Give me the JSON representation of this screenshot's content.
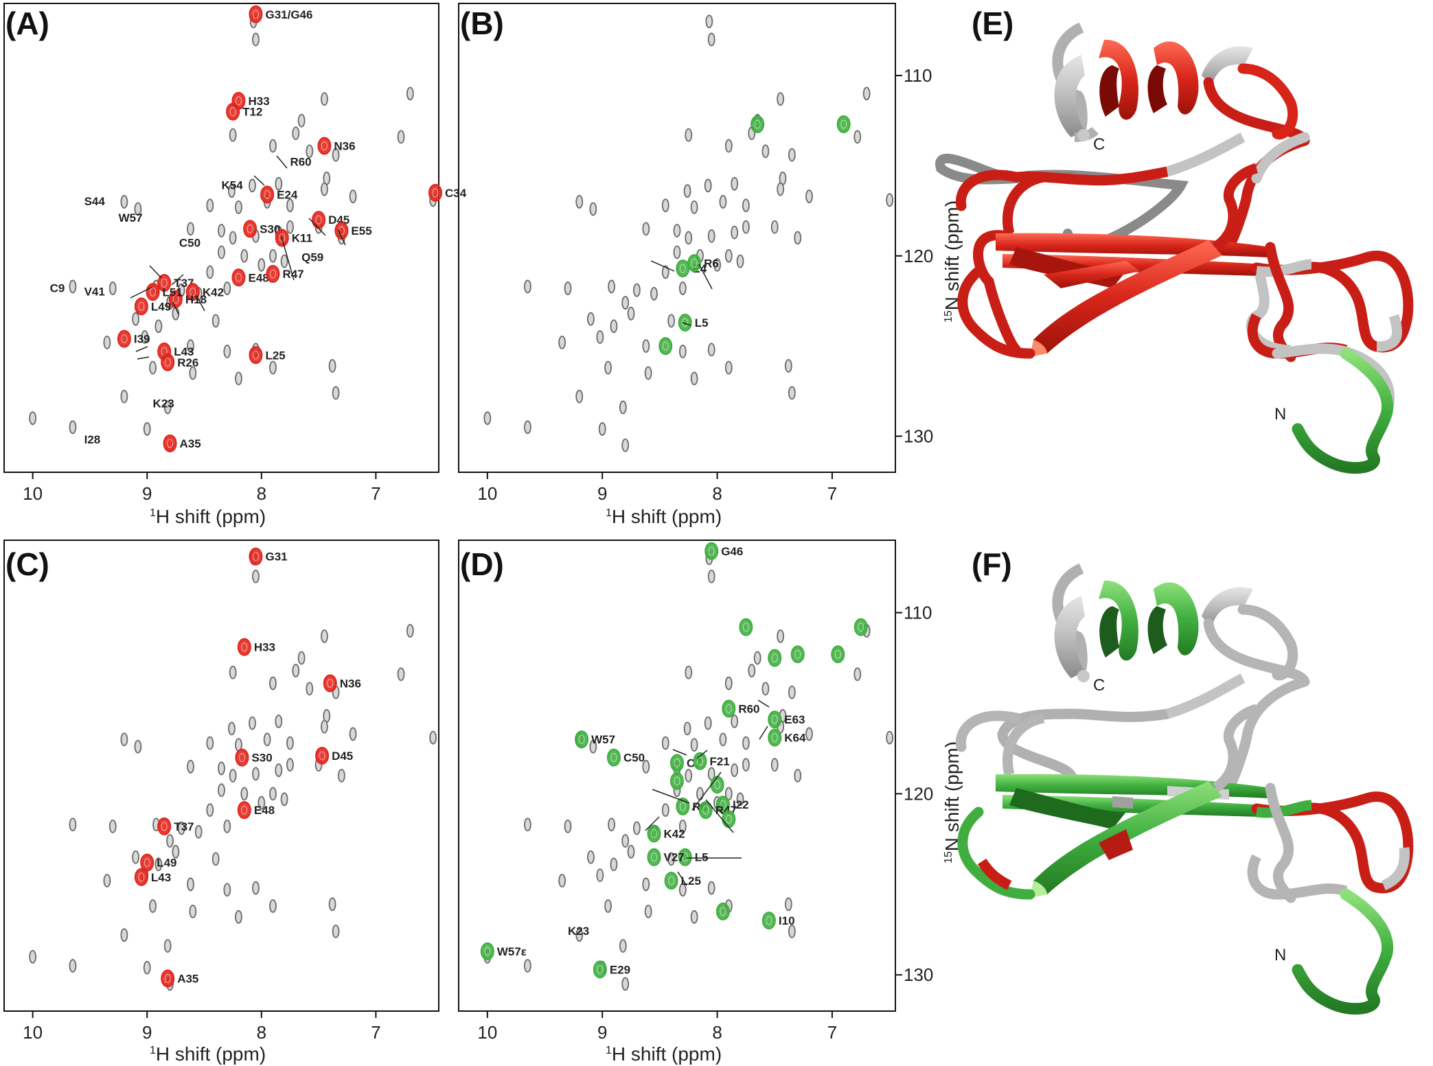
{
  "colors": {
    "red": "#e2231a",
    "green": "#3fae3f",
    "grey": "#6b6b6b",
    "ribbon_grey": "#bdbdbd"
  },
  "panel_labels": {
    "A": "(A)",
    "B": "(B)",
    "C": "(C)",
    "D": "(D)",
    "E": "(E)",
    "F": "(F)"
  },
  "axes": {
    "xlabel_sup": "1",
    "xlabel_rest": "H shift (ppm)",
    "ylabel_sup": "15",
    "ylabel_rest": "N shift (ppm)",
    "x_ticks": [
      "10",
      "9",
      "8",
      "7"
    ],
    "y_ticks": [
      "110",
      "120",
      "130"
    ]
  },
  "structure": {
    "n_term": "N",
    "c_term": "C"
  },
  "chart_data": [
    {
      "panel": "A",
      "type": "scatter",
      "x_axis": "1H shift (ppm)",
      "xlim": [
        10.25,
        6.45
      ],
      "ylim": [
        106,
        132
      ],
      "series": [
        {
          "color": "red",
          "points": [
            {
              "x": 8.05,
              "y": 106.6,
              "label": "G31/G46"
            },
            {
              "x": 8.2,
              "y": 111.4,
              "label": "H33"
            },
            {
              "x": 8.25,
              "y": 112.0,
              "label": "T12"
            },
            {
              "x": 7.45,
              "y": 113.9,
              "label": "N36"
            },
            {
              "x": 7.95,
              "y": 116.6,
              "label": "E24"
            },
            {
              "x": 7.5,
              "y": 118.0,
              "label": "D45"
            },
            {
              "x": 7.3,
              "y": 118.6,
              "label": "E55"
            },
            {
              "x": 6.48,
              "y": 116.5,
              "label": "C34"
            },
            {
              "x": 8.1,
              "y": 118.5,
              "label": "S30"
            },
            {
              "x": 7.82,
              "y": 119.0,
              "label": "K11"
            },
            {
              "x": 8.2,
              "y": 121.2,
              "label": "E48"
            },
            {
              "x": 7.9,
              "y": 121.0,
              "label": "R47"
            },
            {
              "x": 8.85,
              "y": 121.5,
              "label": "T37"
            },
            {
              "x": 8.6,
              "y": 122.0,
              "label": "K42"
            },
            {
              "x": 9.05,
              "y": 122.8,
              "label": "L49"
            },
            {
              "x": 8.75,
              "y": 122.4,
              "label": "H18"
            },
            {
              "x": 8.95,
              "y": 122.0,
              "label": "L51"
            },
            {
              "x": 9.2,
              "y": 124.6,
              "label": "I39"
            },
            {
              "x": 8.85,
              "y": 125.3,
              "label": "L43"
            },
            {
              "x": 8.82,
              "y": 125.9,
              "label": "R26"
            },
            {
              "x": 8.05,
              "y": 125.5,
              "label": "L25"
            },
            {
              "x": 8.8,
              "y": 130.4,
              "label": "A35"
            }
          ]
        }
      ],
      "labels_no_peak": [
        "R60",
        "K54",
        "S44",
        "W57",
        "C50",
        "Q59",
        "C9",
        "V41",
        "K23",
        "I28"
      ]
    },
    {
      "panel": "B",
      "type": "scatter",
      "x_axis": "1H shift (ppm)",
      "y_axis": "15N shift (ppm)",
      "xlim": [
        10.25,
        6.45
      ],
      "ylim": [
        106,
        132
      ],
      "series": [
        {
          "color": "green",
          "points": [
            {
              "x": 8.3,
              "y": 120.7,
              "label": "E4"
            },
            {
              "x": 8.2,
              "y": 120.4,
              "label": "R6"
            },
            {
              "x": 8.28,
              "y": 123.7,
              "label": "L5"
            },
            {
              "x": 7.65,
              "y": 112.7
            },
            {
              "x": 6.9,
              "y": 112.7
            },
            {
              "x": 8.45,
              "y": 125.0
            }
          ]
        }
      ]
    },
    {
      "panel": "C",
      "type": "scatter",
      "x_axis": "1H shift (ppm)",
      "xlim": [
        10.25,
        6.45
      ],
      "ylim": [
        106,
        132
      ],
      "series": [
        {
          "color": "red",
          "points": [
            {
              "x": 8.05,
              "y": 106.9,
              "label": "G31"
            },
            {
              "x": 8.15,
              "y": 111.9,
              "label": "H33"
            },
            {
              "x": 7.4,
              "y": 113.9,
              "label": "N36"
            },
            {
              "x": 7.47,
              "y": 117.9,
              "label": "D45"
            },
            {
              "x": 8.17,
              "y": 118.0,
              "label": "S30"
            },
            {
              "x": 8.85,
              "y": 121.8,
              "label": "T37"
            },
            {
              "x": 8.15,
              "y": 120.9,
              "label": "E48"
            },
            {
              "x": 9.0,
              "y": 123.8,
              "label": "L49"
            },
            {
              "x": 9.05,
              "y": 124.6,
              "label": "L43"
            },
            {
              "x": 8.82,
              "y": 130.2,
              "label": "A35"
            }
          ]
        }
      ]
    },
    {
      "panel": "D",
      "type": "scatter",
      "x_axis": "1H shift (ppm)",
      "y_axis": "15N shift (ppm)",
      "xlim": [
        10.25,
        6.45
      ],
      "ylim": [
        106,
        132
      ],
      "series": [
        {
          "color": "green",
          "points": [
            {
              "x": 8.05,
              "y": 106.6,
              "label": "G46"
            },
            {
              "x": 7.9,
              "y": 115.3,
              "label": "R60"
            },
            {
              "x": 7.5,
              "y": 115.9,
              "label": "E63"
            },
            {
              "x": 7.5,
              "y": 116.9,
              "label": "K64"
            },
            {
              "x": 9.18,
              "y": 117.0,
              "label": "W57"
            },
            {
              "x": 8.9,
              "y": 118.0,
              "label": "C50"
            },
            {
              "x": 8.35,
              "y": 118.3,
              "label": "C7"
            },
            {
              "x": 8.15,
              "y": 118.2,
              "label": "F21"
            },
            {
              "x": 8.3,
              "y": 120.7,
              "label": "R6"
            },
            {
              "x": 8.55,
              "y": 122.2,
              "label": "K42"
            },
            {
              "x": 7.95,
              "y": 120.6,
              "label": "I22"
            },
            {
              "x": 8.1,
              "y": 120.9,
              "label": "R47"
            },
            {
              "x": 8.28,
              "y": 123.5,
              "label": "L5"
            },
            {
              "x": 8.55,
              "y": 123.5,
              "label": "V27"
            },
            {
              "x": 8.4,
              "y": 124.8,
              "label": "L25"
            },
            {
              "x": 7.55,
              "y": 127.0,
              "label": "I10"
            },
            {
              "x": 10.0,
              "y": 128.7,
              "label": "W57ε"
            },
            {
              "x": 9.02,
              "y": 129.7,
              "label": "E29"
            },
            {
              "x": 7.5,
              "y": 112.5
            },
            {
              "x": 7.75,
              "y": 110.8
            },
            {
              "x": 6.95,
              "y": 112.3
            },
            {
              "x": 7.3,
              "y": 112.3
            },
            {
              "x": 6.75,
              "y": 110.8
            },
            {
              "x": 8.0,
              "y": 119.5
            },
            {
              "x": 7.9,
              "y": 121.4
            },
            {
              "x": 8.35,
              "y": 119.3
            },
            {
              "x": 7.95,
              "y": 126.5
            }
          ]
        }
      ],
      "labels_no_peak": [
        "K23"
      ]
    }
  ]
}
